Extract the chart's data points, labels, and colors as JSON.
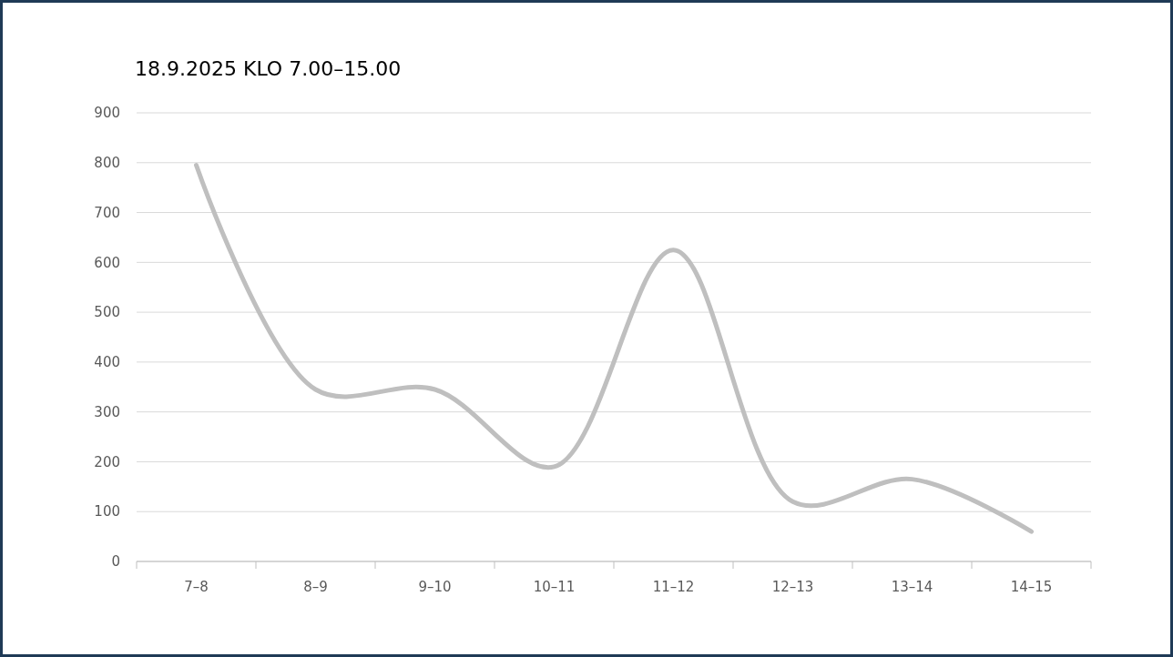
{
  "chart_data": {
    "type": "line",
    "title": "18.9.2025 KLO 7.00–15.00",
    "categories": [
      "7–8",
      "8–9",
      "9–10",
      "10–11",
      "11–12",
      "12–13",
      "13–14",
      "14–15"
    ],
    "series": [
      {
        "color": "#bfbfbf",
        "values": [
          795,
          345,
          345,
          190,
          625,
          120,
          165,
          60
        ]
      }
    ],
    "ylim": [
      0,
      900
    ],
    "yticks": [
      0,
      100,
      200,
      300,
      400,
      500,
      600,
      700,
      800,
      900
    ],
    "grid": "y",
    "marker": "none",
    "line_style": "solid"
  }
}
